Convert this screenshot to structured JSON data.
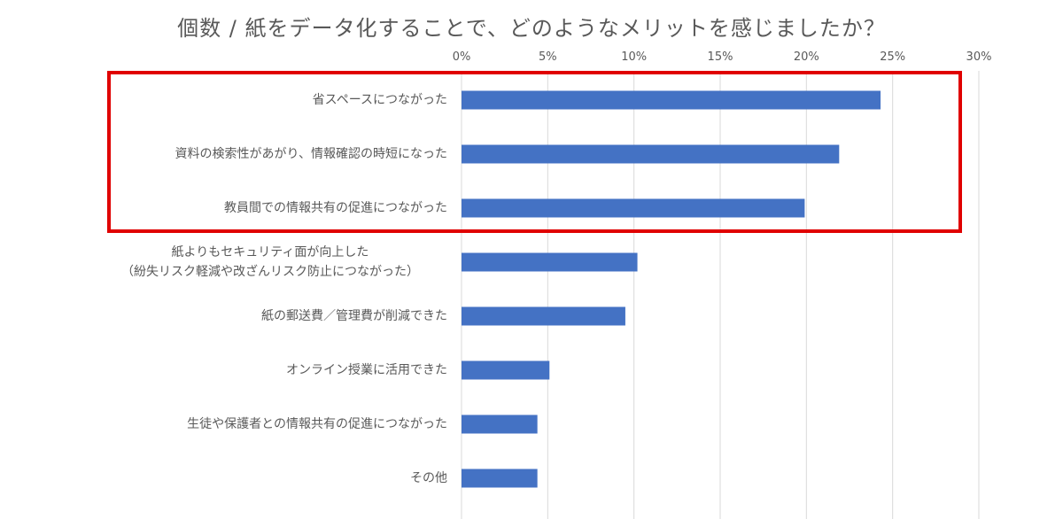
{
  "chart_data": {
    "type": "bar",
    "orientation": "horizontal",
    "title": "個数 / 紙をデータ化することで、どのようなメリットを感じましたか？",
    "xlim": [
      0,
      30
    ],
    "x_ticks": [
      "0%",
      "5%",
      "10%",
      "15%",
      "20%",
      "25%",
      "30%"
    ],
    "x_tick_values": [
      0,
      5,
      10,
      15,
      20,
      25,
      30
    ],
    "grid": "vertical",
    "bar_color": "#4472c4",
    "highlight_color": "#e00000",
    "categories": [
      [
        "省スペースにつながった"
      ],
      [
        "資料の検索性があがり、情報確認の時短になった"
      ],
      [
        "教員間での情報共有の促進につながった"
      ],
      [
        "紙よりもセキュリティ面が向上した",
        "（紛失リスク軽減や改ざんリスク防止につながった）"
      ],
      [
        "紙の郵送費／管理費が削減できた"
      ],
      [
        "オンライン授業に活用できた"
      ],
      [
        "生徒や保護者との情報共有の促進につながった"
      ],
      [
        "その他"
      ]
    ],
    "values": [
      24.3,
      21.9,
      19.9,
      10.2,
      9.5,
      5.1,
      4.4,
      4.4
    ],
    "highlighted_categories": [
      0,
      1,
      2
    ]
  }
}
